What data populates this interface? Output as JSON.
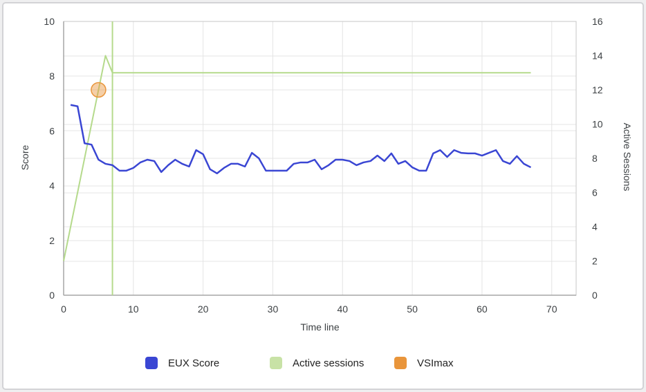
{
  "page": {
    "background_color": "#EFEFF0",
    "card_border_color": "#D3D3D6"
  },
  "chart_data": {
    "type": "line",
    "xlabel": "Time line",
    "grid": true,
    "x_range": [
      0,
      73.5
    ],
    "x_ticks": [
      0,
      10,
      20,
      30,
      40,
      50,
      60,
      70
    ],
    "left_axis": {
      "label": "Score",
      "range": [
        0,
        10
      ],
      "ticks": [
        0,
        2,
        4,
        6,
        8,
        10
      ]
    },
    "right_axis": {
      "label": "Active Sessions",
      "range": [
        0,
        16
      ],
      "ticks": [
        0,
        2,
        4,
        6,
        8,
        10,
        12,
        14,
        16
      ]
    },
    "series": [
      {
        "name": "EUX Score",
        "axis": "left",
        "color": "#3A46D3",
        "x_start": 1,
        "values": [
          6.95,
          6.9,
          5.55,
          5.5,
          4.95,
          4.8,
          4.75,
          4.55,
          4.55,
          4.65,
          4.85,
          4.95,
          4.9,
          4.5,
          4.75,
          4.95,
          4.8,
          4.7,
          5.3,
          5.15,
          4.6,
          4.45,
          4.65,
          4.8,
          4.8,
          4.7,
          5.2,
          5.0,
          4.55,
          4.55,
          4.55,
          4.55,
          4.8,
          4.85,
          4.85,
          4.95,
          4.6,
          4.75,
          4.95,
          4.95,
          4.9,
          4.75,
          4.85,
          4.9,
          5.1,
          4.9,
          5.18,
          4.8,
          4.9,
          4.67,
          4.55,
          4.55,
          5.18,
          5.3,
          5.05,
          5.3,
          5.2,
          5.18,
          5.18,
          5.1,
          5.2,
          5.3,
          4.9,
          4.8,
          5.08,
          4.8,
          4.67
        ]
      },
      {
        "name": "Active sessions",
        "axis": "right",
        "color": "#B5DA8C",
        "x_start": 0,
        "values": [
          2,
          4,
          6,
          8,
          10,
          12,
          14,
          13,
          13,
          13,
          13,
          13,
          13,
          13,
          13,
          13,
          13,
          13,
          13,
          13,
          13,
          13,
          13,
          13,
          13,
          13,
          13,
          13,
          13,
          13,
          13,
          13,
          13,
          13,
          13,
          13,
          13,
          13,
          13,
          13,
          13,
          13,
          13,
          13,
          13,
          13,
          13,
          13,
          13,
          13,
          13,
          13,
          13,
          13,
          13,
          13,
          13,
          13,
          13,
          13,
          13,
          13,
          13,
          13,
          13,
          13,
          13,
          13
        ]
      },
      {
        "name": "VSImax",
        "axis": "right",
        "color": "#E9953B",
        "point": {
          "x": 5,
          "value": 12
        },
        "vline_x": 7
      }
    ],
    "legend": {
      "position": "bottom",
      "items": [
        {
          "label": "EUX Score",
          "color": "#3A46D3"
        },
        {
          "label": "Active sessions",
          "color": "#C8E2A6"
        },
        {
          "label": "VSImax",
          "color": "#E9953B"
        }
      ]
    },
    "style": {
      "gridline_color": "#E4E4E4",
      "plot_border_color": "#C7C7C7",
      "axis_line_color": "#A6A6A6",
      "tick_label_color": "#3C4043",
      "vsimax_fill_opacity": 0.45
    }
  }
}
